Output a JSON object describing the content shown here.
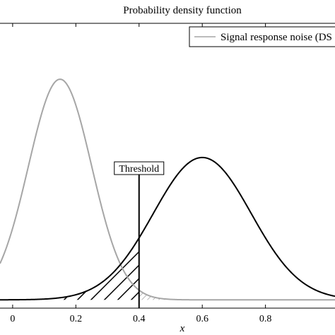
{
  "chart_data": {
    "type": "line",
    "title": "Probability density function",
    "xlabel": "x",
    "ylabel": "",
    "xlim": [
      -0.04,
      1.02
    ],
    "ylim": [
      -0.15,
      5.0
    ],
    "grid": false,
    "x_ticks": [
      {
        "value": 0,
        "label": "0"
      },
      {
        "value": 0.2,
        "label": "0.2"
      },
      {
        "value": 0.4,
        "label": "0.4"
      },
      {
        "value": 0.6,
        "label": "0.6"
      },
      {
        "value": 0.8,
        "label": "0.8"
      }
    ],
    "legend": {
      "placement": "top-right",
      "entries": [
        {
          "label": "Signal response noise (DS",
          "series": "noise"
        }
      ]
    },
    "series": [
      {
        "key": "noise",
        "name": "Signal response noise (DS",
        "distribution": "normal",
        "mean": 0.15,
        "sd": 0.1,
        "color": "#a6a6a6"
      },
      {
        "key": "signal",
        "distribution": "normal",
        "mean": 0.6,
        "sd": 0.155,
        "color": "#000000"
      }
    ],
    "threshold": {
      "x": 0.4,
      "label": "Threshold"
    },
    "shaded_regions": [
      {
        "under": "signal",
        "from": 0.15,
        "to": 0.4,
        "pattern": "hatch",
        "color": "#000000"
      },
      {
        "under": "noise",
        "from": 0.4,
        "to": 0.5,
        "pattern": "hatch",
        "color": "#a6a6a6"
      }
    ]
  }
}
